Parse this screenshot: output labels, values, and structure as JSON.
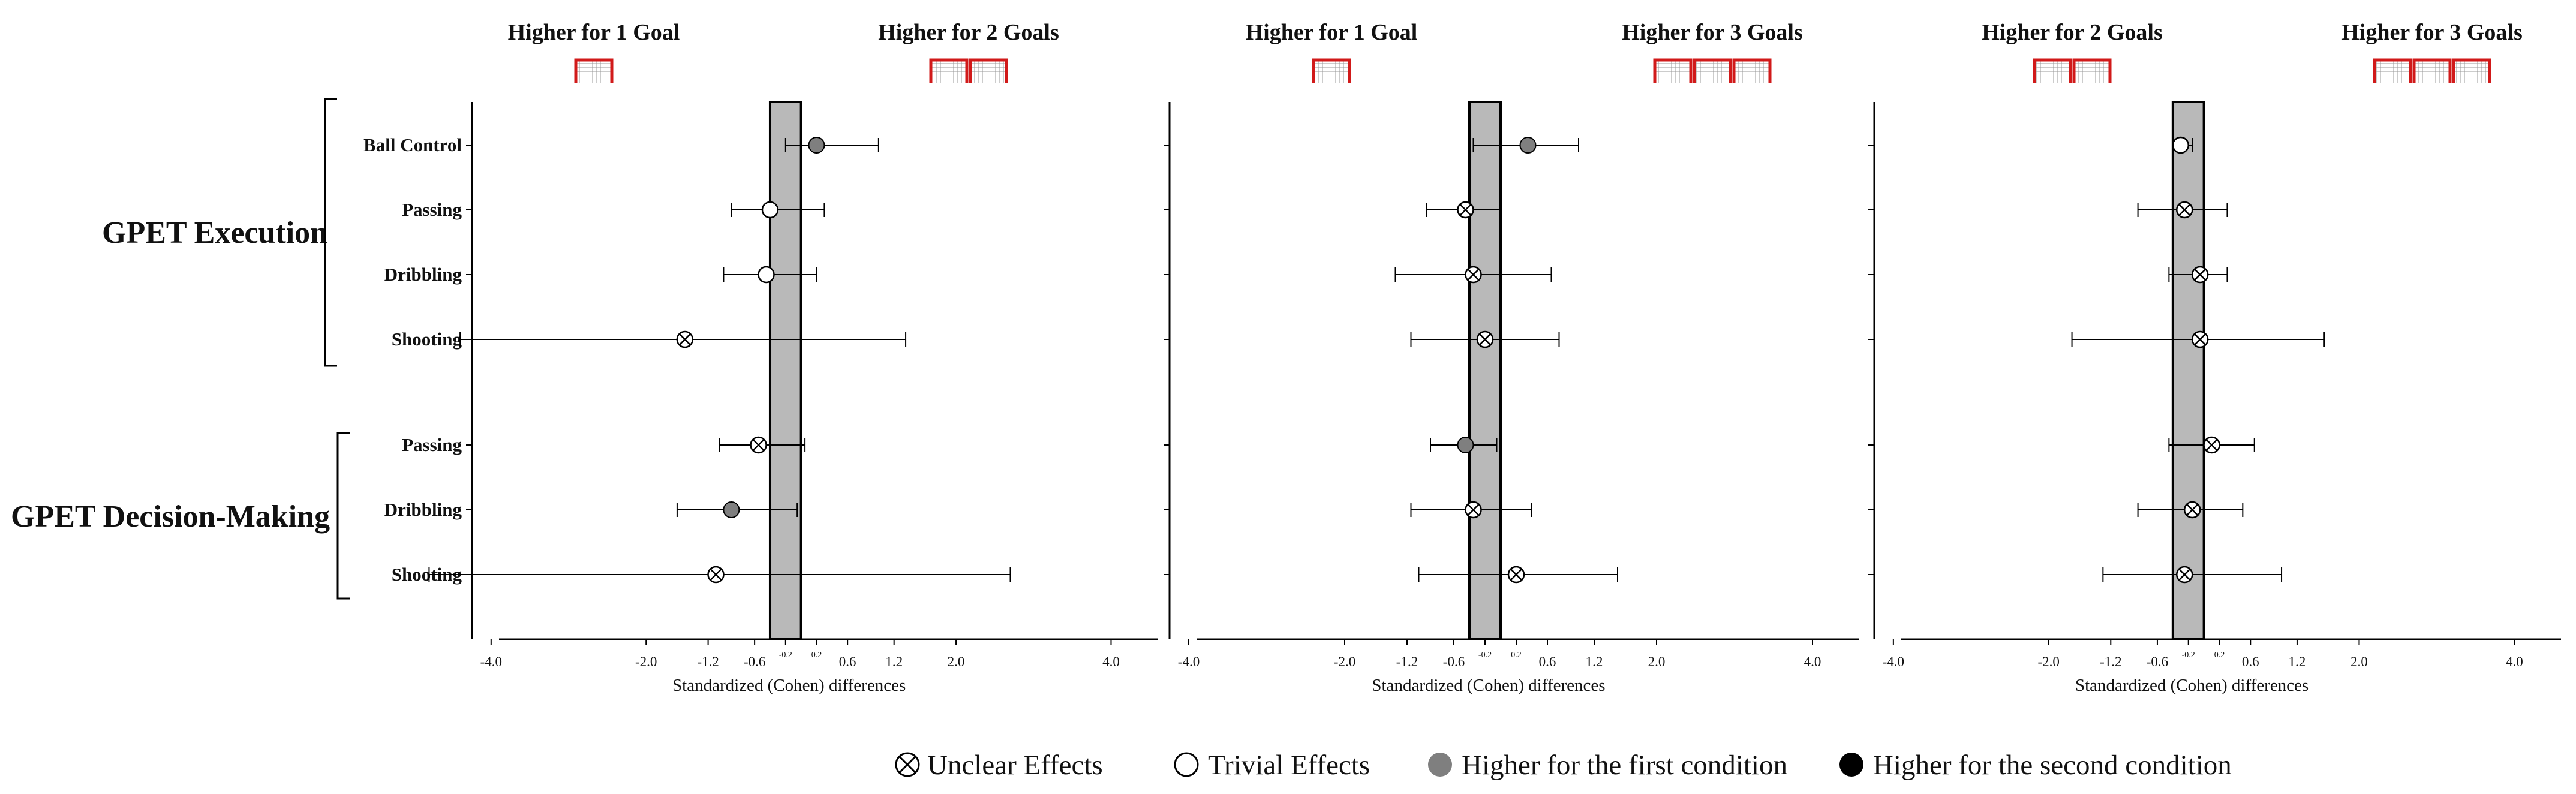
{
  "groups": [
    {
      "label": "GPET Execution",
      "rows": [
        "Ball Control",
        "Passing",
        "Dribbling",
        "Shooting"
      ]
    },
    {
      "label": "GPET Decision-Making",
      "rows": [
        "Passing",
        "Dribbling",
        "Shooting"
      ]
    }
  ],
  "legend": [
    {
      "key": "unclear",
      "label": "Unclear Effects"
    },
    {
      "key": "trivial",
      "label": "Trivial Effects"
    },
    {
      "key": "first",
      "label": "Higher for the first condition"
    },
    {
      "key": "second",
      "label": "Higher for the second condition"
    }
  ],
  "colors": {
    "trivial_band": "#b9b9b9",
    "first_condition": "#7f7f7f",
    "second_condition": "#000000",
    "goal_icon": "#d11a1a"
  },
  "chart_data": [
    {
      "type": "forest",
      "left_header": "Higher for 1 Goal",
      "right_header": "Higher for 2 Goals",
      "left_goals": 1,
      "right_goals": 2,
      "xlabel": "Standardized (Cohen) differences",
      "xlim": [
        -4.6,
        4.6
      ],
      "xticks": [
        "-4.0",
        "-2.0",
        "-1.2",
        "-0.6",
        "-0.2",
        "0.2",
        "0.6",
        "1.2",
        "2.0",
        "4.0"
      ],
      "trivial_band": [
        -0.4,
        0.0
      ],
      "rows": [
        {
          "label": "Ball Control",
          "effect": 0.2,
          "ci": [
            -0.2,
            1.0
          ],
          "type": "first"
        },
        {
          "label": "Passing",
          "effect": -0.4,
          "ci": [
            -0.9,
            0.3
          ],
          "type": "trivial"
        },
        {
          "label": "Dribbling",
          "effect": -0.45,
          "ci": [
            -1.0,
            0.2
          ],
          "type": "trivial"
        },
        {
          "label": "Shooting",
          "effect": -1.5,
          "ci": [
            -4.4,
            1.35
          ],
          "type": "unclear"
        },
        {
          "label": "Passing",
          "effect": -0.55,
          "ci": [
            -1.05,
            0.05
          ],
          "type": "unclear"
        },
        {
          "label": "Dribbling",
          "effect": -0.9,
          "ci": [
            -1.6,
            -0.05
          ],
          "type": "first"
        },
        {
          "label": "Shooting",
          "effect": -1.1,
          "ci": [
            -4.8,
            2.7
          ],
          "type": "unclear"
        }
      ]
    },
    {
      "type": "forest",
      "left_header": "Higher for 1 Goal",
      "right_header": "Higher for 3 Goals",
      "left_goals": 1,
      "right_goals": 3,
      "xlabel": "Standardized (Cohen) differences",
      "xlim": [
        -4.6,
        4.6
      ],
      "xticks": [
        "-4.0",
        "-2.0",
        "-1.2",
        "-0.6",
        "-0.2",
        "0.2",
        "0.6",
        "1.2",
        "2.0",
        "4.0"
      ],
      "trivial_band": [
        -0.4,
        0.0
      ],
      "rows": [
        {
          "label": "Ball Control",
          "effect": 0.35,
          "ci": [
            -0.35,
            1.0
          ],
          "type": "first"
        },
        {
          "label": "Passing",
          "effect": -0.45,
          "ci": [
            -0.95,
            0.0
          ],
          "type": "unclear"
        },
        {
          "label": "Dribbling",
          "effect": -0.35,
          "ci": [
            -1.35,
            0.65
          ],
          "type": "unclear"
        },
        {
          "label": "Shooting",
          "effect": -0.2,
          "ci": [
            -1.15,
            0.75
          ],
          "type": "unclear"
        },
        {
          "label": "Passing",
          "effect": -0.45,
          "ci": [
            -0.9,
            -0.05
          ],
          "type": "first"
        },
        {
          "label": "Dribbling",
          "effect": -0.35,
          "ci": [
            -1.15,
            0.4
          ],
          "type": "unclear"
        },
        {
          "label": "Shooting",
          "effect": 0.2,
          "ci": [
            -1.05,
            1.5
          ],
          "type": "unclear"
        }
      ]
    },
    {
      "type": "forest",
      "left_header": "Higher for 2 Goals",
      "right_header": "Higher for 3 Goals",
      "left_goals": 2,
      "right_goals": 3,
      "xlabel": "Standardized (Cohen) differences",
      "xlim": [
        -4.6,
        4.6
      ],
      "xticks": [
        "-4.0",
        "-2.0",
        "-1.2",
        "-0.6",
        "-0.2",
        "0.2",
        "0.6",
        "1.2",
        "2.0",
        "4.0"
      ],
      "trivial_band": [
        -0.4,
        0.0
      ],
      "rows": [
        {
          "label": "Ball Control",
          "effect": -0.3,
          "ci": [
            -0.35,
            -0.15
          ],
          "type": "trivial"
        },
        {
          "label": "Passing",
          "effect": -0.25,
          "ci": [
            -0.85,
            0.3
          ],
          "type": "unclear"
        },
        {
          "label": "Dribbling",
          "effect": -0.05,
          "ci": [
            -0.45,
            0.3
          ],
          "type": "unclear"
        },
        {
          "label": "Shooting",
          "effect": -0.05,
          "ci": [
            -1.7,
            1.55
          ],
          "type": "unclear"
        },
        {
          "label": "Passing",
          "effect": 0.1,
          "ci": [
            -0.45,
            0.65
          ],
          "type": "unclear"
        },
        {
          "label": "Dribbling",
          "effect": -0.15,
          "ci": [
            -0.85,
            0.5
          ],
          "type": "unclear"
        },
        {
          "label": "Shooting",
          "effect": -0.25,
          "ci": [
            -1.3,
            1.0
          ],
          "type": "unclear"
        }
      ]
    }
  ]
}
